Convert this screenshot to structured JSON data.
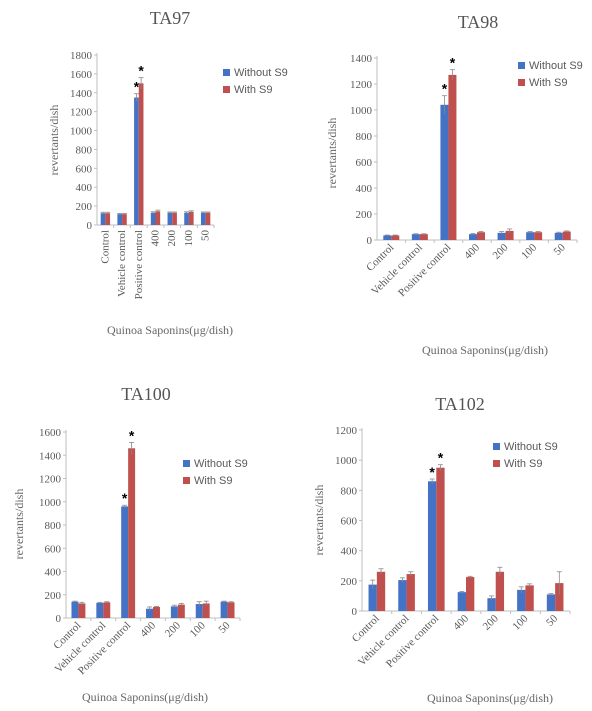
{
  "chart_data": [
    {
      "type": "bar",
      "title": "TA97",
      "ylabel": "revertants/dish",
      "xlabel": "Quinoa Saponins(μg/dish)",
      "categories": [
        "Control",
        "Vehicle control",
        "Positive control",
        "400",
        "200",
        "100",
        "50"
      ],
      "ylim": [
        0,
        1800
      ],
      "yticks": [
        0,
        200,
        400,
        600,
        800,
        1000,
        1200,
        1400,
        1600,
        1800
      ],
      "legend": "right",
      "series": [
        {
          "name": "Without S9",
          "color": "#4472C4",
          "values": [
            125,
            115,
            1350,
            130,
            130,
            130,
            130
          ],
          "errors": [
            10,
            8,
            40,
            10,
            8,
            10,
            8
          ],
          "stars": [
            false,
            false,
            true,
            false,
            false,
            false,
            false
          ]
        },
        {
          "name": "With S9",
          "color": "#C0504D",
          "values": [
            125,
            115,
            1500,
            145,
            130,
            140,
            130
          ],
          "errors": [
            10,
            8,
            60,
            12,
            8,
            10,
            8
          ],
          "stars": [
            false,
            false,
            true,
            false,
            false,
            false,
            false
          ]
        }
      ]
    },
    {
      "type": "bar",
      "title": "TA98",
      "ylabel": "revertants/dish",
      "xlabel": "Quinoa Saponins(μg/dish)",
      "categories": [
        "Control",
        "Vehicle control",
        "Positive control",
        "400",
        "200",
        "100",
        "50"
      ],
      "ylim": [
        0,
        1400
      ],
      "yticks": [
        0,
        200,
        400,
        600,
        800,
        1000,
        1200,
        1400
      ],
      "legend": "right",
      "series": [
        {
          "name": "Without S9",
          "color": "#4472C4",
          "values": [
            35,
            45,
            1040,
            45,
            55,
            60,
            55
          ],
          "errors": [
            3,
            3,
            70,
            5,
            10,
            5,
            5
          ],
          "stars": [
            false,
            false,
            true,
            false,
            false,
            false,
            false
          ]
        },
        {
          "name": "With S9",
          "color": "#C0504D",
          "values": [
            35,
            45,
            1270,
            60,
            70,
            60,
            65
          ],
          "errors": [
            3,
            3,
            40,
            5,
            15,
            5,
            5
          ],
          "stars": [
            false,
            false,
            true,
            false,
            false,
            false,
            false
          ]
        }
      ]
    },
    {
      "type": "bar",
      "title": "TA100",
      "ylabel": "revertants/dish",
      "xlabel": "Quinoa Saponins(μg/dish)",
      "categories": [
        "Control",
        "Vehicle control",
        "Positive control",
        "400",
        "200",
        "100",
        "50"
      ],
      "ylim": [
        0,
        1600
      ],
      "yticks": [
        0,
        200,
        400,
        600,
        800,
        1000,
        1200,
        1400,
        1600
      ],
      "legend": "right",
      "series": [
        {
          "name": "Without S9",
          "color": "#4472C4",
          "values": [
            140,
            130,
            960,
            80,
            100,
            120,
            140
          ],
          "errors": [
            5,
            5,
            10,
            15,
            10,
            20,
            5
          ],
          "stars": [
            false,
            false,
            true,
            false,
            false,
            false,
            false
          ]
        },
        {
          "name": "With S9",
          "color": "#C0504D",
          "values": [
            125,
            135,
            1460,
            95,
            115,
            125,
            135
          ],
          "errors": [
            10,
            5,
            50,
            5,
            10,
            20,
            5
          ],
          "stars": [
            false,
            false,
            true,
            false,
            false,
            false,
            false
          ]
        }
      ]
    },
    {
      "type": "bar",
      "title": "TA102",
      "ylabel": "revertants/dish",
      "xlabel": "Quinoa Saponins(μg/dish)",
      "categories": [
        "Control",
        "Vehicle control",
        "Positive control",
        "400",
        "200",
        "100",
        "50"
      ],
      "ylim": [
        0,
        1200
      ],
      "yticks": [
        0,
        200,
        400,
        600,
        800,
        1000,
        1200
      ],
      "legend": "right",
      "series": [
        {
          "name": "Without S9",
          "color": "#4472C4",
          "values": [
            175,
            205,
            860,
            125,
            85,
            140,
            110
          ],
          "errors": [
            30,
            15,
            15,
            5,
            15,
            20,
            5
          ],
          "stars": [
            false,
            false,
            true,
            false,
            false,
            false,
            false
          ]
        },
        {
          "name": "With S9",
          "color": "#C0504D",
          "values": [
            260,
            245,
            950,
            225,
            260,
            170,
            185
          ],
          "errors": [
            20,
            15,
            20,
            5,
            30,
            10,
            75
          ],
          "stars": [
            false,
            false,
            true,
            false,
            false,
            false,
            false
          ]
        }
      ]
    }
  ]
}
